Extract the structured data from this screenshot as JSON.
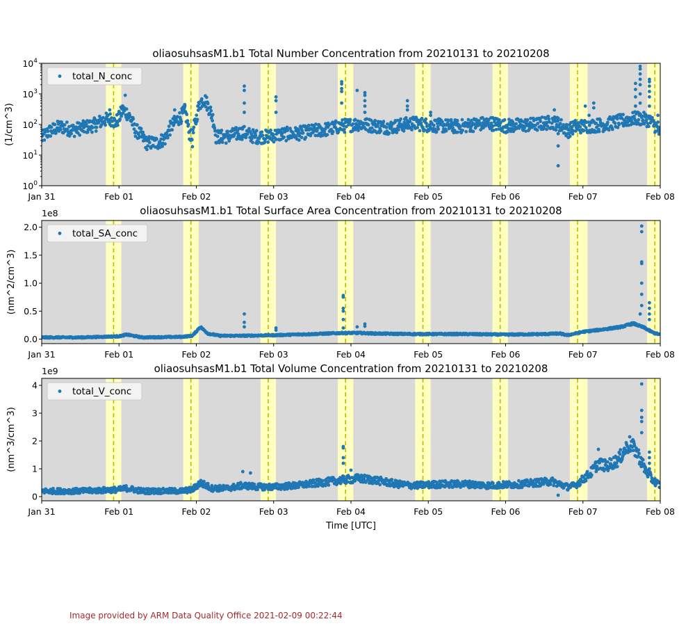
{
  "figure": {
    "x_label": "Time [UTC]",
    "footer": "Image provided by ARM Data Quality Office 2021-02-09 00:22:44",
    "colors": {
      "background": "#d9d9d9",
      "night_band": "#ffffc0",
      "dashed_line": "#bdbd00",
      "series": "#1f77b4"
    }
  },
  "chart_data": [
    {
      "type": "scatter",
      "title": "oliaosuhsasM1.b1 Total Number Concentration from 20210131 to 20210208",
      "ylabel": "(1/cm^3)",
      "xlabel": "",
      "yscale": "log",
      "ylim": [
        1,
        10000
      ],
      "yticks": [
        "10^0",
        "10^1",
        "10^2",
        "10^3",
        "10^4"
      ],
      "y_multiplier": "",
      "xlim": [
        0,
        8
      ],
      "x_tick_labels": [
        "Jan 31",
        "Feb 01",
        "Feb 02",
        "Feb 03",
        "Feb 04",
        "Feb 05",
        "Feb 06",
        "Feb 07",
        "Feb 08"
      ],
      "legend": "total_N_conc",
      "legend_loc": "upper left",
      "night_bands": [
        [
          0.83,
          1.03
        ],
        [
          1.83,
          2.03
        ],
        [
          2.83,
          3.03
        ],
        [
          3.83,
          4.03
        ],
        [
          4.83,
          5.03
        ],
        [
          5.83,
          6.03
        ],
        [
          6.83,
          7.06
        ],
        [
          7.83,
          8.0
        ]
      ],
      "dashed_lines": [
        0.93,
        1.93,
        2.93,
        3.93,
        4.93,
        5.93,
        6.93,
        7.93
      ],
      "trend": [
        [
          0,
          35
        ],
        [
          0.1,
          60
        ],
        [
          0.25,
          85
        ],
        [
          0.4,
          65
        ],
        [
          0.55,
          80
        ],
        [
          0.7,
          100
        ],
        [
          0.8,
          140
        ],
        [
          0.9,
          150
        ],
        [
          0.95,
          110
        ],
        [
          1.0,
          160
        ],
        [
          1.05,
          300
        ],
        [
          1.1,
          240
        ],
        [
          1.2,
          70
        ],
        [
          1.35,
          25
        ],
        [
          1.5,
          25
        ],
        [
          1.6,
          35
        ],
        [
          1.7,
          100
        ],
        [
          1.8,
          180
        ],
        [
          1.85,
          260
        ],
        [
          1.9,
          60
        ],
        [
          1.95,
          30
        ],
        [
          2.0,
          150
        ],
        [
          2.05,
          500
        ],
        [
          2.1,
          700
        ],
        [
          2.15,
          400
        ],
        [
          2.2,
          200
        ],
        [
          2.25,
          40
        ],
        [
          2.4,
          40
        ],
        [
          2.6,
          55
        ],
        [
          2.75,
          40
        ],
        [
          2.9,
          40
        ],
        [
          3.1,
          48
        ],
        [
          3.3,
          50
        ],
        [
          3.5,
          60
        ],
        [
          3.7,
          70
        ],
        [
          3.9,
          90
        ],
        [
          4.1,
          105
        ],
        [
          4.3,
          90
        ],
        [
          4.5,
          80
        ],
        [
          4.7,
          100
        ],
        [
          4.8,
          110
        ],
        [
          5.0,
          95
        ],
        [
          5.2,
          90
        ],
        [
          5.4,
          85
        ],
        [
          5.6,
          100
        ],
        [
          5.8,
          110
        ],
        [
          6.0,
          90
        ],
        [
          6.2,
          95
        ],
        [
          6.4,
          100
        ],
        [
          6.6,
          120
        ],
        [
          6.7,
          100
        ],
        [
          6.8,
          60
        ],
        [
          6.9,
          85
        ],
        [
          7.1,
          90
        ],
        [
          7.3,
          100
        ],
        [
          7.5,
          130
        ],
        [
          7.7,
          160
        ],
        [
          7.85,
          140
        ],
        [
          7.95,
          80
        ],
        [
          8.0,
          45
        ]
      ],
      "spread": 0.45,
      "spikes": [
        [
          0.88,
          300
        ],
        [
          1.08,
          900
        ],
        [
          1.72,
          300
        ],
        [
          1.85,
          450
        ],
        [
          2.62,
          1800
        ],
        [
          2.62,
          1300
        ],
        [
          2.62,
          500
        ],
        [
          2.62,
          250
        ],
        [
          3.03,
          800
        ],
        [
          3.03,
          600
        ],
        [
          3.03,
          250
        ],
        [
          3.88,
          2500
        ],
        [
          3.88,
          2100
        ],
        [
          3.88,
          1500
        ],
        [
          3.88,
          1200
        ],
        [
          3.88,
          500
        ],
        [
          4.08,
          1300
        ],
        [
          4.18,
          1100
        ],
        [
          4.18,
          900
        ],
        [
          4.18,
          600
        ],
        [
          4.18,
          400
        ],
        [
          4.18,
          250
        ],
        [
          4.73,
          600
        ],
        [
          4.73,
          400
        ],
        [
          4.73,
          300
        ],
        [
          5.03,
          250
        ],
        [
          5.03,
          200
        ],
        [
          6.63,
          300
        ],
        [
          6.68,
          160
        ],
        [
          6.68,
          50
        ],
        [
          6.68,
          20
        ],
        [
          6.68,
          4.5
        ],
        [
          7.03,
          400
        ],
        [
          7.08,
          200
        ],
        [
          7.14,
          500
        ],
        [
          7.14,
          350
        ],
        [
          7.74,
          8000
        ],
        [
          7.74,
          6500
        ],
        [
          7.74,
          4500
        ],
        [
          7.74,
          3000
        ],
        [
          7.74,
          2000
        ],
        [
          7.74,
          1000
        ],
        [
          7.74,
          500
        ],
        [
          7.68,
          2200
        ],
        [
          7.68,
          1400
        ],
        [
          7.68,
          800
        ],
        [
          7.68,
          400
        ],
        [
          7.86,
          3000
        ],
        [
          7.86,
          2500
        ],
        [
          7.86,
          1800
        ],
        [
          7.86,
          1200
        ],
        [
          7.86,
          800
        ],
        [
          7.86,
          400
        ],
        [
          7.97,
          200
        ],
        [
          7.97,
          120
        ]
      ]
    },
    {
      "type": "scatter",
      "title": "oliaosuhsasM1.b1 Total Surface Area Concentration from 20210131 to 20210208",
      "ylabel": "(nm^2/cm^3)",
      "xlabel": "",
      "yscale": "linear",
      "ylim": [
        -0.08,
        2.12
      ],
      "yticks": [
        "0.0",
        "0.5",
        "1.0",
        "1.5",
        "2.0"
      ],
      "ytick_values": [
        0.0,
        0.5,
        1.0,
        1.5,
        2.0
      ],
      "y_multiplier": "1e8",
      "xlim": [
        0,
        8
      ],
      "x_tick_labels": [
        "Jan 31",
        "Feb 01",
        "Feb 02",
        "Feb 03",
        "Feb 04",
        "Feb 05",
        "Feb 06",
        "Feb 07",
        "Feb 08"
      ],
      "legend": "total_SA_conc",
      "legend_loc": "upper left",
      "night_bands": [
        [
          0.83,
          1.03
        ],
        [
          1.83,
          2.03
        ],
        [
          2.83,
          3.03
        ],
        [
          3.83,
          4.03
        ],
        [
          4.83,
          5.03
        ],
        [
          5.83,
          6.03
        ],
        [
          6.83,
          7.06
        ],
        [
          7.83,
          8.0
        ]
      ],
      "dashed_lines": [
        0.93,
        1.93,
        2.93,
        3.93,
        4.93,
        5.93,
        6.93,
        7.93
      ],
      "trend": [
        [
          0,
          0.03
        ],
        [
          0.5,
          0.03
        ],
        [
          1.0,
          0.05
        ],
        [
          1.1,
          0.08
        ],
        [
          1.3,
          0.03
        ],
        [
          1.8,
          0.04
        ],
        [
          1.95,
          0.06
        ],
        [
          2.05,
          0.22
        ],
        [
          2.15,
          0.1
        ],
        [
          2.3,
          0.06
        ],
        [
          2.6,
          0.06
        ],
        [
          3.0,
          0.07
        ],
        [
          3.5,
          0.09
        ],
        [
          3.9,
          0.11
        ],
        [
          4.1,
          0.11
        ],
        [
          4.3,
          0.1
        ],
        [
          4.8,
          0.09
        ],
        [
          5.0,
          0.09
        ],
        [
          5.5,
          0.09
        ],
        [
          6.0,
          0.08
        ],
        [
          6.5,
          0.09
        ],
        [
          6.7,
          0.1
        ],
        [
          6.8,
          0.07
        ],
        [
          7.0,
          0.13
        ],
        [
          7.3,
          0.18
        ],
        [
          7.5,
          0.22
        ],
        [
          7.65,
          0.28
        ],
        [
          7.8,
          0.2
        ],
        [
          7.9,
          0.12
        ],
        [
          8.0,
          0.08
        ]
      ],
      "spread": 0.02,
      "spikes": [
        [
          2.62,
          0.45
        ],
        [
          2.62,
          0.3
        ],
        [
          2.62,
          0.22
        ],
        [
          3.03,
          0.2
        ],
        [
          3.03,
          0.16
        ],
        [
          3.9,
          0.78
        ],
        [
          3.9,
          0.75
        ],
        [
          3.9,
          0.55
        ],
        [
          3.9,
          0.5
        ],
        [
          3.9,
          0.35
        ],
        [
          3.9,
          0.2
        ],
        [
          4.08,
          0.22
        ],
        [
          4.18,
          0.27
        ],
        [
          4.18,
          0.23
        ],
        [
          7.76,
          2.02
        ],
        [
          7.76,
          1.92
        ],
        [
          7.76,
          1.38
        ],
        [
          7.76,
          1.35
        ],
        [
          7.76,
          1.0
        ],
        [
          7.76,
          0.8
        ],
        [
          7.76,
          0.6
        ],
        [
          7.74,
          0.45
        ],
        [
          7.86,
          0.65
        ],
        [
          7.86,
          0.55
        ],
        [
          7.86,
          0.45
        ],
        [
          7.86,
          0.35
        ]
      ]
    },
    {
      "type": "scatter",
      "title": "oliaosuhsasM1.b1 Total Volume Concentration from 20210131 to 20210208",
      "ylabel": "(nm^3/cm^3)",
      "xlabel": "Time [UTC]",
      "yscale": "linear",
      "ylim": [
        -0.15,
        4.25
      ],
      "yticks": [
        "0",
        "1",
        "2",
        "3",
        "4"
      ],
      "ytick_values": [
        0,
        1,
        2,
        3,
        4
      ],
      "y_multiplier": "1e9",
      "xlim": [
        0,
        8
      ],
      "x_tick_labels": [
        "Jan 31",
        "Feb 01",
        "Feb 02",
        "Feb 03",
        "Feb 04",
        "Feb 05",
        "Feb 06",
        "Feb 07",
        "Feb 08"
      ],
      "legend": "total_V_conc",
      "legend_loc": "upper left",
      "night_bands": [
        [
          0.83,
          1.03
        ],
        [
          1.83,
          2.03
        ],
        [
          2.83,
          3.03
        ],
        [
          3.83,
          4.03
        ],
        [
          4.83,
          5.03
        ],
        [
          5.83,
          6.03
        ],
        [
          6.83,
          7.06
        ],
        [
          7.83,
          8.0
        ]
      ],
      "dashed_lines": [
        0.93,
        1.93,
        2.93,
        3.93,
        4.93,
        5.93,
        6.93,
        7.93
      ],
      "trend": [
        [
          0,
          0.2
        ],
        [
          0.5,
          0.2
        ],
        [
          1.0,
          0.25
        ],
        [
          1.1,
          0.3
        ],
        [
          1.3,
          0.2
        ],
        [
          1.8,
          0.2
        ],
        [
          1.95,
          0.25
        ],
        [
          2.05,
          0.5
        ],
        [
          2.2,
          0.3
        ],
        [
          2.4,
          0.3
        ],
        [
          2.6,
          0.4
        ],
        [
          2.8,
          0.35
        ],
        [
          3.0,
          0.35
        ],
        [
          3.3,
          0.4
        ],
        [
          3.6,
          0.5
        ],
        [
          3.9,
          0.6
        ],
        [
          4.1,
          0.65
        ],
        [
          4.3,
          0.6
        ],
        [
          4.6,
          0.45
        ],
        [
          4.8,
          0.4
        ],
        [
          5.2,
          0.45
        ],
        [
          5.5,
          0.45
        ],
        [
          5.8,
          0.4
        ],
        [
          6.2,
          0.45
        ],
        [
          6.6,
          0.55
        ],
        [
          6.8,
          0.35
        ],
        [
          6.9,
          0.4
        ],
        [
          7.1,
          0.85
        ],
        [
          7.2,
          1.2
        ],
        [
          7.3,
          1.1
        ],
        [
          7.45,
          1.3
        ],
        [
          7.6,
          1.9
        ],
        [
          7.7,
          1.6
        ],
        [
          7.8,
          1.0
        ],
        [
          7.9,
          0.6
        ],
        [
          8.0,
          0.4
        ]
      ],
      "spread": 0.12,
      "spikes": [
        [
          2.6,
          0.9
        ],
        [
          2.7,
          0.85
        ],
        [
          3.9,
          1.8
        ],
        [
          3.9,
          1.75
        ],
        [
          3.9,
          1.4
        ],
        [
          3.9,
          1.2
        ],
        [
          4.0,
          0.95
        ],
        [
          6.68,
          0.05
        ],
        [
          7.2,
          1.7
        ],
        [
          7.76,
          4.05
        ],
        [
          7.76,
          3.1
        ],
        [
          7.76,
          2.85
        ],
        [
          7.76,
          2.7
        ],
        [
          7.76,
          2.3
        ],
        [
          7.86,
          1.6
        ],
        [
          7.86,
          1.4
        ],
        [
          7.86,
          1.2
        ],
        [
          7.86,
          1.0
        ]
      ]
    }
  ]
}
